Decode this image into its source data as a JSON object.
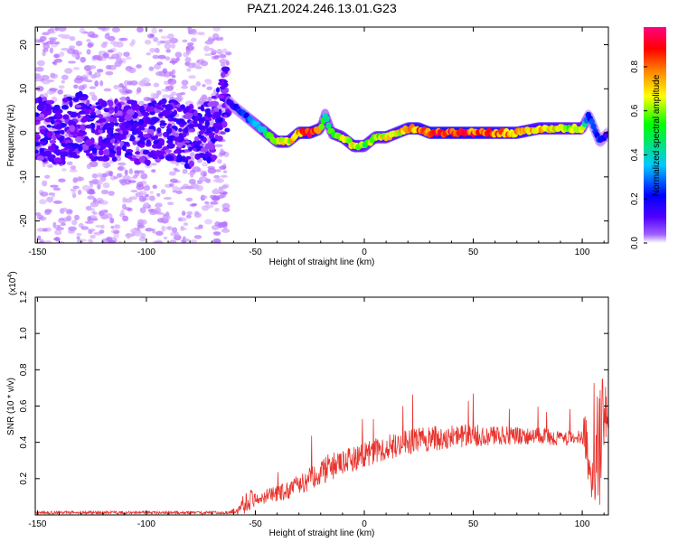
{
  "title": "PAZ1.2024.246.13.01.G23",
  "chart_data": [
    {
      "type": "heatmap",
      "name": "spectrogram",
      "xlabel": "Height of straight line (km)",
      "ylabel": "Frequency (Hz)",
      "xlim": [
        -151,
        112
      ],
      "ylim": [
        -25,
        24
      ],
      "xticks": [
        -150,
        -100,
        -50,
        0,
        50,
        100
      ],
      "yticks": [
        -20,
        -10,
        0,
        10,
        20
      ],
      "colorbar": {
        "label": "Normalized spectral amplitude",
        "range": [
          0,
          0.98
        ],
        "ticks": [
          0.0,
          0.2,
          0.4,
          0.6,
          0.8
        ],
        "colors": [
          "#ffffff",
          "#7a00ff",
          "#0000ff",
          "#00c8ff",
          "#00ff00",
          "#ffff00",
          "#ff8000",
          "#ff0000",
          "#ff0080"
        ]
      },
      "ridge": {
        "x": [
          -150,
          -140,
          -130,
          -120,
          -110,
          -100,
          -90,
          -80,
          -70,
          -64,
          -60,
          -55,
          -50,
          -45,
          -40,
          -35,
          -30,
          -25,
          -20,
          -18,
          -15,
          -10,
          -5,
          0,
          5,
          10,
          15,
          20,
          25,
          30,
          40,
          50,
          60,
          70,
          80,
          90,
          100,
          103,
          108,
          112
        ],
        "y": [
          1,
          0,
          2,
          0,
          1,
          0,
          1,
          -1,
          0,
          8,
          6,
          4,
          2,
          0,
          -2,
          -2,
          0,
          0,
          1,
          4,
          0,
          -1,
          -3,
          -3,
          -1,
          -1,
          0,
          1,
          1,
          0,
          0,
          0,
          0,
          0,
          1,
          1,
          1,
          4,
          -2,
          0
        ],
        "amp": [
          0.15,
          0.15,
          0.2,
          0.15,
          0.15,
          0.15,
          0.15,
          0.15,
          0.12,
          0.2,
          0.25,
          0.3,
          0.4,
          0.55,
          0.6,
          0.7,
          0.8,
          0.95,
          0.7,
          0.5,
          0.6,
          0.65,
          0.7,
          0.6,
          0.6,
          0.7,
          0.7,
          0.8,
          0.85,
          0.9,
          0.95,
          0.9,
          0.85,
          0.8,
          0.75,
          0.7,
          0.6,
          0.3,
          0.3,
          0.2
        ]
      }
    },
    {
      "type": "line",
      "name": "snr",
      "xlabel": "Height of straight line (km)",
      "ylabel": "SNR (10 * v/v)",
      "scale_label": "(x10^4)",
      "xlim": [
        -151,
        112
      ],
      "ylim": [
        0,
        1.2
      ],
      "xticks": [
        -150,
        -100,
        -50,
        0,
        50,
        100
      ],
      "yticks": [
        0.2,
        0.4,
        0.6,
        0.8,
        1.0,
        1.2
      ],
      "ytick_labels": [
        "0.2",
        "0.4",
        "0.6",
        "0.8",
        "1.0",
        "1.2"
      ],
      "color": "#e8332d",
      "envelope": {
        "x": [
          -151,
          -100,
          -70,
          -62,
          -58,
          -55,
          -52,
          -48,
          -45,
          -40,
          -35,
          -30,
          -25,
          -20,
          -15,
          -10,
          -5,
          0,
          5,
          10,
          20,
          30,
          40,
          50,
          60,
          70,
          80,
          90,
          95,
          100,
          101,
          103,
          105,
          108,
          110,
          112
        ],
        "base": [
          0.01,
          0.01,
          0.01,
          0.01,
          0.02,
          0.05,
          0.07,
          0.08,
          0.09,
          0.1,
          0.12,
          0.15,
          0.18,
          0.22,
          0.24,
          0.26,
          0.29,
          0.31,
          0.33,
          0.35,
          0.38,
          0.4,
          0.41,
          0.42,
          0.42,
          0.42,
          0.42,
          0.41,
          0.41,
          0.42,
          0.5,
          0.2,
          0.15,
          0.3,
          0.55,
          0.5
        ],
        "noise": [
          0.01,
          0.01,
          0.01,
          0.01,
          0.03,
          0.08,
          0.07,
          0.04,
          0.05,
          0.06,
          0.06,
          0.07,
          0.08,
          0.09,
          0.1,
          0.09,
          0.09,
          0.09,
          0.09,
          0.09,
          0.09,
          0.09,
          0.08,
          0.08,
          0.07,
          0.06,
          0.06,
          0.05,
          0.05,
          0.05,
          0.3,
          0.15,
          0.2,
          0.5,
          0.3,
          0.15
        ]
      }
    }
  ]
}
